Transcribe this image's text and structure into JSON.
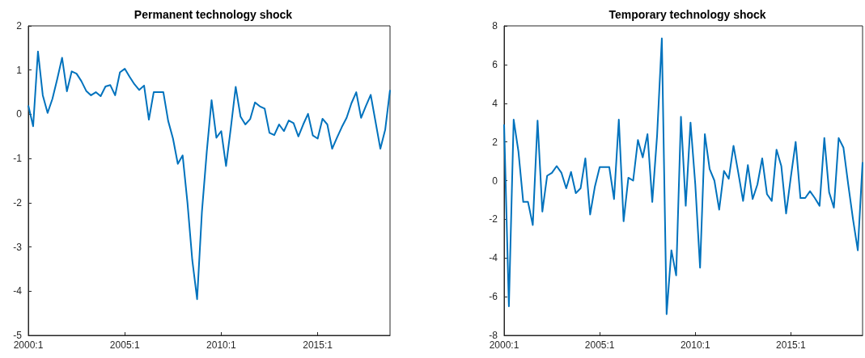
{
  "chart_data": [
    {
      "type": "line",
      "title": "Permanent technology shock",
      "categories": [
        "2000:1",
        null,
        null,
        null,
        null,
        null,
        null,
        null,
        null,
        null,
        null,
        null,
        null,
        null,
        null,
        null,
        null,
        null,
        null,
        null,
        "2005:1",
        null,
        null,
        null,
        null,
        null,
        null,
        null,
        null,
        null,
        null,
        null,
        null,
        null,
        null,
        null,
        null,
        null,
        null,
        null,
        "2010:1",
        null,
        null,
        null,
        null,
        null,
        null,
        null,
        null,
        null,
        null,
        null,
        null,
        null,
        null,
        null,
        null,
        null,
        null,
        null,
        "2015:1",
        null,
        null,
        null,
        null,
        null,
        null,
        null,
        null,
        null,
        null,
        null,
        null,
        null,
        null,
        null
      ],
      "values": [
        0.2,
        -0.27,
        1.42,
        0.43,
        0.03,
        0.35,
        0.8,
        1.28,
        0.52,
        0.97,
        0.92,
        0.75,
        0.53,
        0.43,
        0.5,
        0.41,
        0.63,
        0.66,
        0.43,
        0.95,
        1.03,
        0.85,
        0.68,
        0.55,
        0.65,
        -0.12,
        0.5,
        0.5,
        0.5,
        -0.15,
        -0.55,
        -1.12,
        -0.93,
        -2.0,
        -3.3,
        -4.18,
        -2.2,
        -0.85,
        0.32,
        -0.53,
        -0.38,
        -1.17,
        -0.3,
        0.62,
        -0.05,
        -0.23,
        -0.11,
        0.27,
        0.18,
        0.13,
        -0.42,
        -0.47,
        -0.23,
        -0.38,
        -0.14,
        -0.2,
        -0.5,
        -0.23,
        0.01,
        -0.48,
        -0.55,
        -0.1,
        -0.23,
        -0.78,
        -0.53,
        -0.29,
        -0.08,
        0.25,
        0.5,
        -0.08,
        0.19,
        0.44,
        -0.17,
        -0.78,
        -0.35,
        0.55
      ],
      "color": "#0072bd",
      "ylim": [
        -5,
        2
      ],
      "yticks": [
        -5,
        -4,
        -3,
        -2,
        -1,
        0,
        1,
        2
      ]
    },
    {
      "type": "line",
      "title": "Temporary technology shock",
      "categories": [
        "2000:1",
        null,
        null,
        null,
        null,
        null,
        null,
        null,
        null,
        null,
        null,
        null,
        null,
        null,
        null,
        null,
        null,
        null,
        null,
        null,
        "2005:1",
        null,
        null,
        null,
        null,
        null,
        null,
        null,
        null,
        null,
        null,
        null,
        null,
        null,
        null,
        null,
        null,
        null,
        null,
        null,
        "2010:1",
        null,
        null,
        null,
        null,
        null,
        null,
        null,
        null,
        null,
        null,
        null,
        null,
        null,
        null,
        null,
        null,
        null,
        null,
        null,
        "2015:1",
        null,
        null,
        null,
        null,
        null,
        null,
        null,
        null,
        null,
        null,
        null,
        null,
        null,
        null,
        null
      ],
      "values": [
        2.9,
        -6.5,
        3.15,
        1.5,
        -1.1,
        -1.1,
        -2.3,
        3.1,
        -1.6,
        0.25,
        0.4,
        0.75,
        0.4,
        -0.4,
        0.45,
        -0.65,
        -0.4,
        1.15,
        -1.75,
        -0.3,
        0.7,
        0.7,
        0.7,
        -0.95,
        3.15,
        -2.1,
        0.15,
        0.0,
        2.1,
        1.2,
        2.4,
        -1.1,
        2.3,
        7.35,
        -6.9,
        -3.6,
        -4.9,
        3.3,
        -1.3,
        3.0,
        -0.2,
        -4.5,
        2.4,
        0.6,
        0.0,
        -1.5,
        0.5,
        0.1,
        1.8,
        0.4,
        -1.05,
        0.8,
        -0.95,
        -0.2,
        1.15,
        -0.7,
        -1.05,
        1.6,
        0.75,
        -1.7,
        0.2,
        2.0,
        -0.9,
        -0.9,
        -0.55,
        -0.9,
        -1.3,
        2.2,
        -0.6,
        -1.4,
        2.2,
        1.7,
        -0.2,
        -2.0,
        -3.6,
        0.95
      ],
      "color": "#0072bd",
      "ylim": [
        -8,
        8
      ],
      "yticks": [
        -8,
        -6,
        -4,
        -2,
        0,
        2,
        4,
        6,
        8
      ]
    }
  ]
}
